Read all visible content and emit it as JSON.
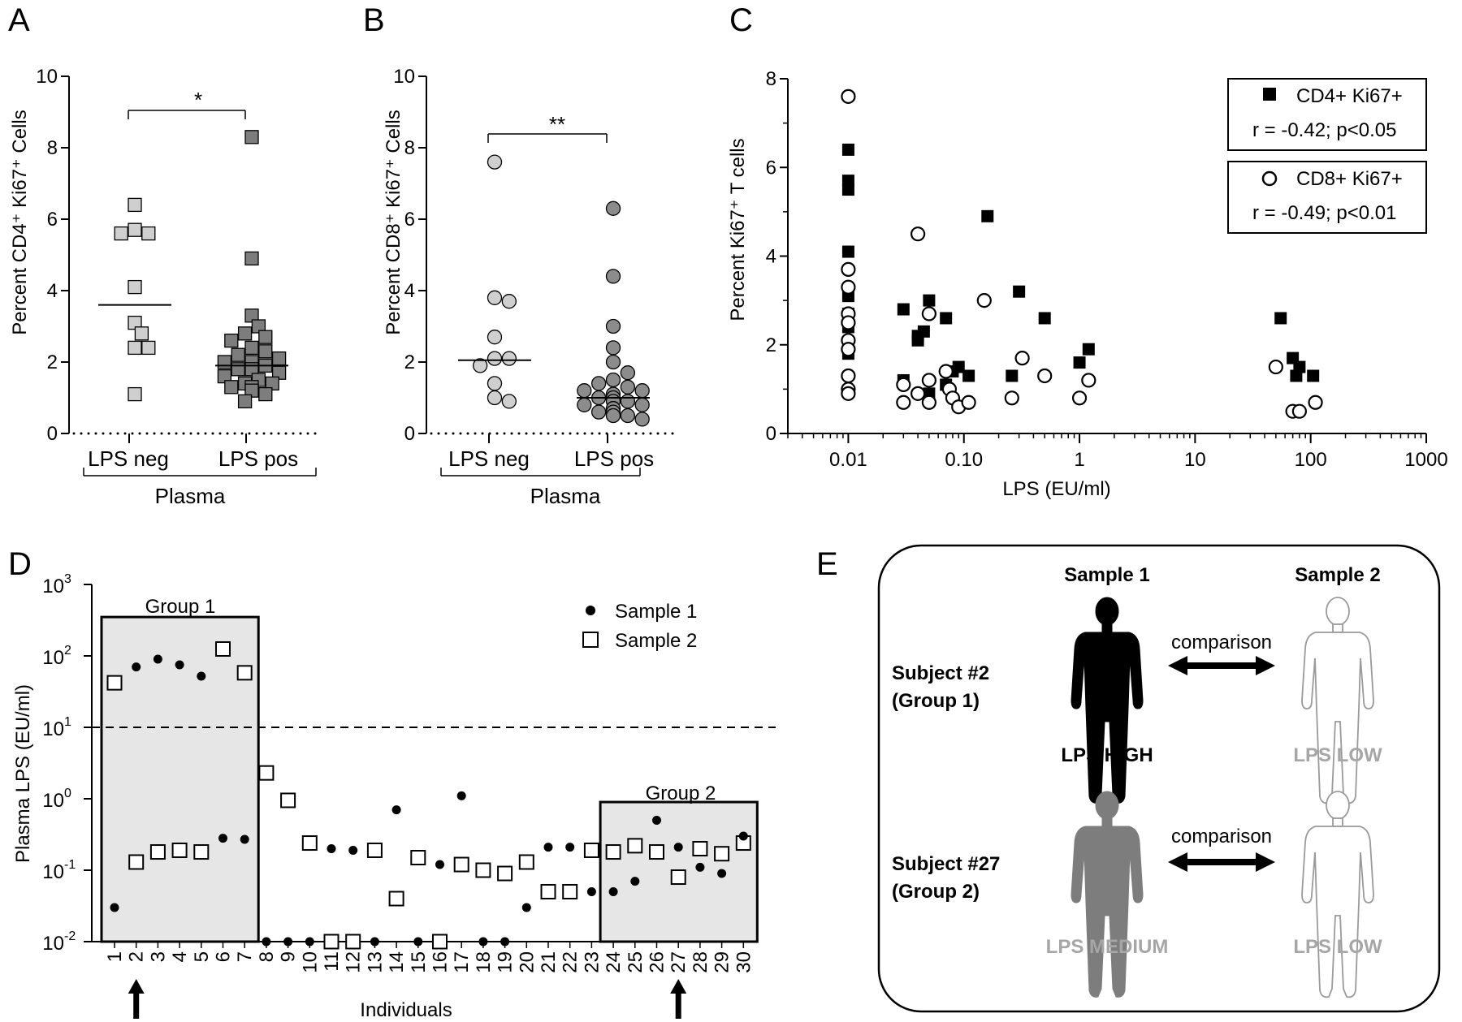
{
  "colors": {
    "light_gray": "#cfcfcf",
    "mid_gray": "#8c8c8c",
    "dark_gray": "#7d7d7d",
    "black": "#000000",
    "shade": "#e6e6e6",
    "pale_label": "#a6a6a6"
  },
  "chart_data": [
    {
      "panel": "A",
      "type": "scatter",
      "ylabel": "Percent CD4⁺ Ki67⁺ Cells",
      "ylim": [
        0,
        10
      ],
      "yticks": [
        0,
        2,
        4,
        6,
        8,
        10
      ],
      "categories": [
        "LPS neg",
        "LPS pos"
      ],
      "group_label": "Plasma",
      "significance": "*",
      "marker": "square",
      "series": [
        {
          "category": "LPS neg",
          "median": 3.6,
          "color": "light_gray",
          "values": [
            6.4,
            5.6,
            5.6,
            5.7,
            4.1,
            3.1,
            2.8,
            2.4,
            2.4,
            1.1
          ]
        },
        {
          "category": "LPS pos",
          "median": 1.9,
          "color": "dark_gray",
          "values": [
            8.3,
            4.9,
            3.3,
            3.0,
            2.8,
            2.7,
            2.6,
            2.4,
            2.3,
            2.2,
            2.1,
            2.0,
            2.0,
            1.9,
            1.8,
            1.8,
            1.7,
            1.6,
            1.5,
            1.4,
            1.4,
            1.3,
            1.3,
            1.2,
            1.1,
            0.9
          ]
        }
      ]
    },
    {
      "panel": "B",
      "type": "scatter",
      "ylabel": "Percent CD8⁺ Ki67⁺ Cells",
      "ylim": [
        0,
        10
      ],
      "yticks": [
        0,
        2,
        4,
        6,
        8,
        10
      ],
      "categories": [
        "LPS neg",
        "LPS pos"
      ],
      "group_label": "Plasma",
      "significance": "**",
      "marker": "circle",
      "series": [
        {
          "category": "LPS neg",
          "median": 2.05,
          "color": "light_gray",
          "values": [
            7.6,
            3.8,
            3.7,
            2.7,
            2.1,
            2.1,
            1.9,
            1.4,
            1.0,
            0.9
          ]
        },
        {
          "category": "LPS pos",
          "median": 1.0,
          "color": "mid_gray",
          "values": [
            6.3,
            4.4,
            3.0,
            2.4,
            2.0,
            1.7,
            1.5,
            1.4,
            1.3,
            1.2,
            1.2,
            1.1,
            1.0,
            1.0,
            0.9,
            0.9,
            0.8,
            0.8,
            0.7,
            0.7,
            0.6,
            0.6,
            0.5,
            0.5,
            0.4
          ]
        }
      ]
    },
    {
      "panel": "C",
      "type": "scatter",
      "xlabel": "LPS (EU/ml)",
      "ylabel": "Percent Ki67⁺ T cells",
      "xscale": "log",
      "xlim": [
        0.003,
        1000
      ],
      "xticks": [
        0.01,
        0.1,
        1,
        10,
        100,
        1000
      ],
      "xticklabels": [
        "0.01",
        "0.10",
        "1",
        "10",
        "100",
        "1000"
      ],
      "ylim": [
        0,
        8
      ],
      "yticks": [
        0,
        2,
        4,
        6,
        8
      ],
      "legend": [
        {
          "label": "CD4+ Ki67+",
          "stat": "r = -0.42; p<0.05"
        },
        {
          "label": "CD8+ Ki67+",
          "stat": "r = -0.49; p<0.01"
        }
      ],
      "series": [
        {
          "name": "CD4+ Ki67+",
          "marker": "filled-square",
          "points": [
            [
              0.01,
              6.4
            ],
            [
              0.01,
              5.7
            ],
            [
              0.01,
              5.5
            ],
            [
              0.01,
              4.1
            ],
            [
              0.01,
              3.1
            ],
            [
              0.01,
              2.7
            ],
            [
              0.01,
              2.4
            ],
            [
              0.01,
              2.0
            ],
            [
              0.01,
              1.8
            ],
            [
              0.03,
              2.8
            ],
            [
              0.03,
              1.2
            ],
            [
              0.04,
              2.2
            ],
            [
              0.04,
              2.1
            ],
            [
              0.045,
              2.3
            ],
            [
              0.05,
              3.0
            ],
            [
              0.05,
              0.9
            ],
            [
              0.07,
              2.6
            ],
            [
              0.07,
              1.1
            ],
            [
              0.08,
              1.4
            ],
            [
              0.09,
              1.5
            ],
            [
              0.11,
              1.3
            ],
            [
              0.16,
              4.9
            ],
            [
              0.26,
              1.3
            ],
            [
              0.3,
              3.2
            ],
            [
              0.5,
              2.6
            ],
            [
              1.0,
              1.6
            ],
            [
              1.2,
              1.9
            ],
            [
              55,
              2.6
            ],
            [
              70,
              1.7
            ],
            [
              75,
              1.3
            ],
            [
              80,
              1.5
            ],
            [
              105,
              1.3
            ]
          ]
        },
        {
          "name": "CD8+ Ki67+",
          "marker": "open-circle",
          "points": [
            [
              0.01,
              7.6
            ],
            [
              0.01,
              3.7
            ],
            [
              0.01,
              3.3
            ],
            [
              0.01,
              2.7
            ],
            [
              0.01,
              2.5
            ],
            [
              0.01,
              2.1
            ],
            [
              0.01,
              1.9
            ],
            [
              0.01,
              1.3
            ],
            [
              0.01,
              1.0
            ],
            [
              0.01,
              0.9
            ],
            [
              0.03,
              1.1
            ],
            [
              0.03,
              0.7
            ],
            [
              0.04,
              4.5
            ],
            [
              0.04,
              0.9
            ],
            [
              0.05,
              2.7
            ],
            [
              0.05,
              1.2
            ],
            [
              0.05,
              0.7
            ],
            [
              0.07,
              1.4
            ],
            [
              0.075,
              1.0
            ],
            [
              0.08,
              0.8
            ],
            [
              0.09,
              0.6
            ],
            [
              0.11,
              0.7
            ],
            [
              0.15,
              3.0
            ],
            [
              0.26,
              0.8
            ],
            [
              0.32,
              1.7
            ],
            [
              0.5,
              1.3
            ],
            [
              1.0,
              0.8
            ],
            [
              1.2,
              1.2
            ],
            [
              50,
              1.5
            ],
            [
              70,
              0.5
            ],
            [
              80,
              0.5
            ],
            [
              110,
              0.7
            ]
          ]
        }
      ]
    },
    {
      "panel": "D",
      "type": "scatter",
      "xlabel": "Individuals",
      "ylabel": "Plasma LPS (EU/ml)",
      "yscale": "log",
      "ylim": [
        0.01,
        1000
      ],
      "yticks": [
        0.01,
        0.1,
        1,
        10,
        100,
        1000
      ],
      "ytick_mantissas": [
        "10",
        "10",
        "10",
        "10",
        "10",
        "10"
      ],
      "ytick_exponents": [
        "-2",
        "-1",
        "0",
        "1",
        "2",
        "3"
      ],
      "categories": [
        "1",
        "2",
        "3",
        "4",
        "5",
        "6",
        "7",
        "8",
        "9",
        "10",
        "11",
        "12",
        "13",
        "14",
        "15",
        "16",
        "17",
        "18",
        "19",
        "20",
        "21",
        "22",
        "23",
        "24",
        "25",
        "26",
        "27",
        "28",
        "29",
        "30"
      ],
      "threshold": 10,
      "arrows_at": [
        "2",
        "27"
      ],
      "groups": [
        {
          "label": "Group 1",
          "from": "1",
          "to": "7",
          "ymax": 350
        },
        {
          "label": "Group 2",
          "from": "24",
          "to": "30",
          "ymax": 0.9
        }
      ],
      "series": [
        {
          "name": "Sample 1",
          "marker": "filled-circle",
          "values": [
            0.03,
            70,
            90,
            75,
            52,
            0.28,
            0.27,
            0.01,
            0.01,
            0.01,
            0.2,
            0.19,
            0.01,
            0.7,
            0.01,
            0.12,
            1.1,
            0.01,
            0.01,
            0.03,
            0.21,
            0.21,
            0.05,
            0.05,
            0.07,
            0.5,
            0.21,
            0.11,
            0.09,
            0.3
          ]
        },
        {
          "name": "Sample 2",
          "marker": "open-square",
          "values": [
            42,
            0.13,
            0.18,
            0.19,
            0.18,
            125,
            58,
            2.3,
            0.95,
            0.24,
            0.01,
            0.01,
            0.19,
            0.04,
            0.15,
            0.01,
            0.12,
            0.1,
            0.09,
            0.13,
            0.05,
            0.05,
            0.19,
            0.18,
            0.22,
            0.18,
            0.08,
            0.2,
            0.17,
            0.24
          ]
        }
      ]
    }
  ],
  "panel_e": {
    "letter": "E",
    "col1_header": "Sample 1",
    "col2_header": "Sample 2",
    "rows": [
      {
        "subject": "Subject #2",
        "group": "(Group 1)",
        "comparison": "comparison",
        "fig1_color": "black",
        "fig2_color": "white",
        "label1": "LPS HIGH",
        "label1_color": "black",
        "label2": "LPS LOW",
        "label2_color": "pale_label"
      },
      {
        "subject": "Subject #27",
        "group": "(Group 2)",
        "comparison": "comparison",
        "fig1_color": "dark_gray",
        "fig2_color": "white",
        "label1": "LPS MEDIUM",
        "label1_color": "pale_label",
        "label2": "LPS LOW",
        "label2_color": "pale_label"
      }
    ]
  }
}
